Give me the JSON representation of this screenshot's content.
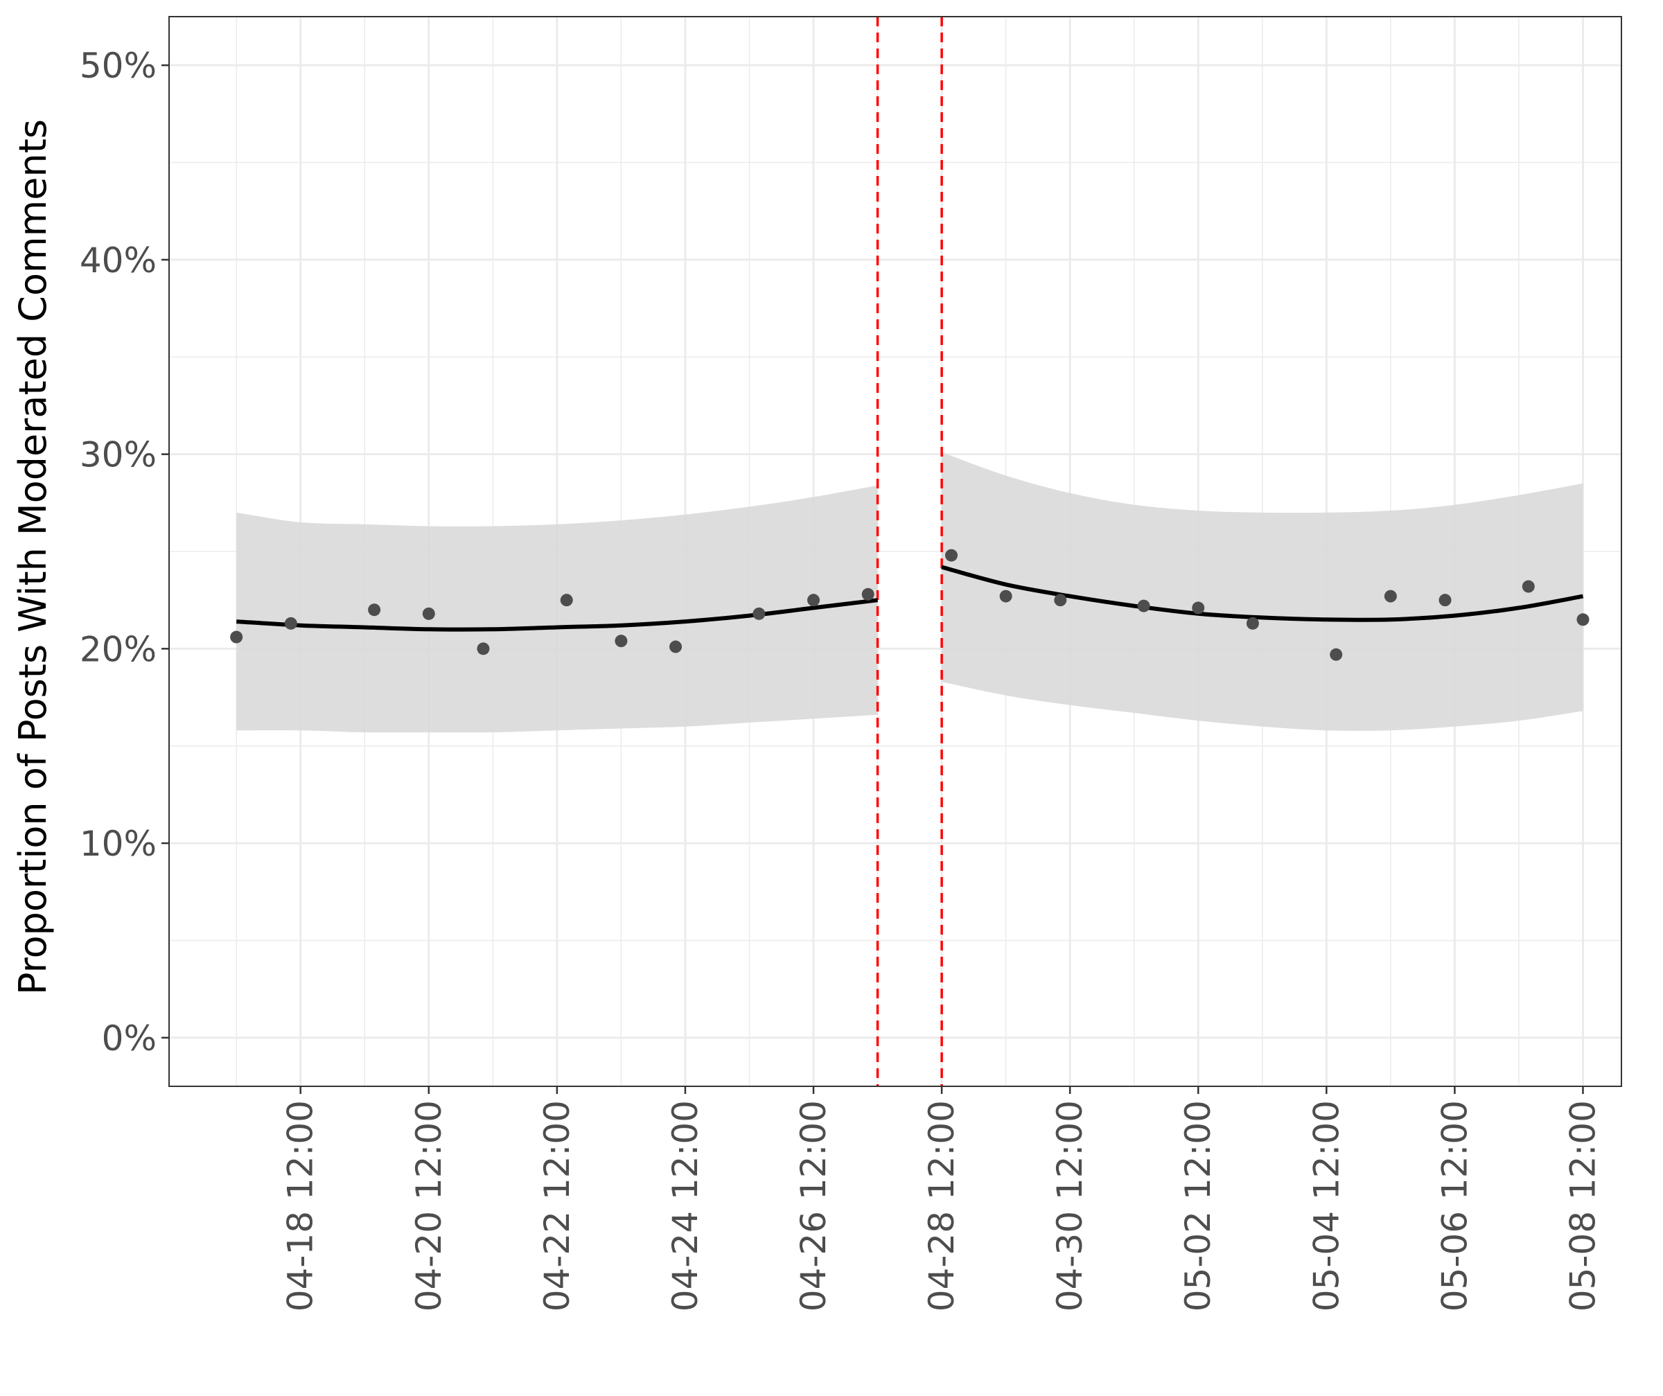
{
  "chart_data": {
    "type": "scatter",
    "title": "",
    "xlabel": "",
    "ylabel": "Proportion of Posts With Moderated Comments",
    "x_axis": {
      "type": "date",
      "ticks": [
        "04-18 12:00",
        "04-20 12:00",
        "04-22 12:00",
        "04-24 12:00",
        "04-26 12:00",
        "04-28 12:00",
        "04-30 12:00",
        "05-02 12:00",
        "05-04 12:00",
        "05-06 12:00",
        "05-08 12:00"
      ],
      "tick_days": [
        1,
        3,
        5,
        7,
        9,
        11,
        13,
        15,
        17,
        19,
        21
      ],
      "range_days": [
        -1.05,
        21.6
      ]
    },
    "y_axis": {
      "ticks": [
        "0%",
        "10%",
        "20%",
        "30%",
        "40%",
        "50%"
      ],
      "tick_values": [
        0,
        10,
        20,
        30,
        40,
        50
      ],
      "ylim": [
        -2.5,
        52.5
      ],
      "unit": "percent"
    },
    "grid": true,
    "legend": "none",
    "vlines": {
      "days": [
        10,
        11
      ],
      "color": "#ff0000",
      "style": "dashed"
    },
    "points": [
      {
        "day": 0.0,
        "value": 20.6
      },
      {
        "day": 0.85,
        "value": 21.3
      },
      {
        "day": 2.15,
        "value": 22.0
      },
      {
        "day": 3.0,
        "value": 21.8
      },
      {
        "day": 3.85,
        "value": 20.0
      },
      {
        "day": 5.15,
        "value": 22.5
      },
      {
        "day": 6.0,
        "value": 20.4
      },
      {
        "day": 6.85,
        "value": 20.1
      },
      {
        "day": 8.15,
        "value": 21.8
      },
      {
        "day": 9.0,
        "value": 22.5
      },
      {
        "day": 9.85,
        "value": 22.8
      },
      {
        "day": 11.15,
        "value": 24.8
      },
      {
        "day": 12.0,
        "value": 22.7
      },
      {
        "day": 12.85,
        "value": 22.5
      },
      {
        "day": 14.15,
        "value": 22.2
      },
      {
        "day": 15.0,
        "value": 22.1
      },
      {
        "day": 15.85,
        "value": 21.3
      },
      {
        "day": 17.15,
        "value": 19.7
      },
      {
        "day": 18.0,
        "value": 22.7
      },
      {
        "day": 18.85,
        "value": 22.5
      },
      {
        "day": 20.15,
        "value": 23.2
      },
      {
        "day": 21.0,
        "value": 21.5
      }
    ],
    "fit_segments": [
      {
        "days": [
          0,
          1,
          2,
          3,
          4,
          5,
          6,
          7,
          8,
          9,
          10
        ],
        "fit": [
          21.4,
          21.2,
          21.1,
          21.0,
          21.0,
          21.1,
          21.2,
          21.4,
          21.7,
          22.1,
          22.5
        ],
        "upper": [
          27.0,
          26.5,
          26.4,
          26.3,
          26.3,
          26.4,
          26.6,
          26.9,
          27.3,
          27.8,
          28.4
        ],
        "lower": [
          15.8,
          15.8,
          15.7,
          15.7,
          15.7,
          15.8,
          15.9,
          16.0,
          16.2,
          16.4,
          16.6
        ]
      },
      {
        "days": [
          11,
          12,
          13,
          14,
          15,
          16,
          17,
          18,
          19,
          20,
          21
        ],
        "fit": [
          24.2,
          23.3,
          22.7,
          22.2,
          21.8,
          21.6,
          21.5,
          21.5,
          21.7,
          22.1,
          22.7
        ],
        "upper": [
          30.1,
          28.9,
          28.0,
          27.4,
          27.1,
          27.0,
          27.0,
          27.1,
          27.4,
          27.9,
          28.5
        ],
        "lower": [
          18.3,
          17.6,
          17.1,
          16.7,
          16.3,
          16.0,
          15.8,
          15.8,
          16.0,
          16.3,
          16.8
        ]
      }
    ],
    "colors": {
      "points": "#4d4d4d",
      "fit_line": "#000000",
      "ribbon": "#d9d9d9",
      "grid": "#ebebeb",
      "vline": "#ff0000"
    }
  }
}
